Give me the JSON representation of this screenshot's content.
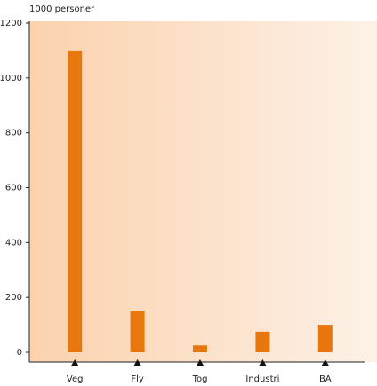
{
  "chart_data": {
    "type": "bar",
    "y_axis_label": "1000 personer",
    "categories": [
      "Veg",
      "Fly",
      "Tog",
      "Industri",
      "BA"
    ],
    "values": [
      1100,
      150,
      25,
      75,
      100
    ],
    "color": "#e8770e",
    "ylim": [
      0,
      1200
    ],
    "yticks": [
      0,
      200,
      400,
      600,
      800,
      1000,
      1200
    ]
  }
}
